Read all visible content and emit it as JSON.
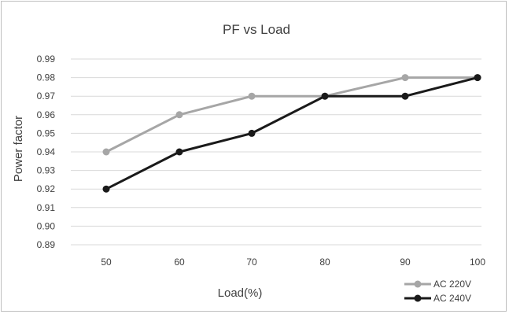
{
  "chart_data": {
    "type": "line",
    "title": "PF vs Load",
    "xlabel": "Load(%)",
    "ylabel": "Power factor",
    "x": [
      50,
      60,
      70,
      80,
      90,
      100
    ],
    "x_tick_labels": [
      "50",
      "60",
      "70",
      "80",
      "90",
      "100"
    ],
    "ylim": [
      0.89,
      0.99
    ],
    "y_tick_labels": [
      "0.89",
      "0.90",
      "0.91",
      "0.92",
      "0.93",
      "0.94",
      "0.95",
      "0.96",
      "0.97",
      "0.98",
      "0.99"
    ],
    "grid": true,
    "legend_position": "bottom-right",
    "series": [
      {
        "name": "AC 220V",
        "color": "#a6a6a6",
        "values": [
          0.94,
          0.96,
          0.97,
          0.97,
          0.98,
          0.98
        ]
      },
      {
        "name": "AC 240V",
        "color": "#1a1a1a",
        "values": [
          0.92,
          0.94,
          0.95,
          0.97,
          0.97,
          0.98
        ]
      }
    ]
  }
}
